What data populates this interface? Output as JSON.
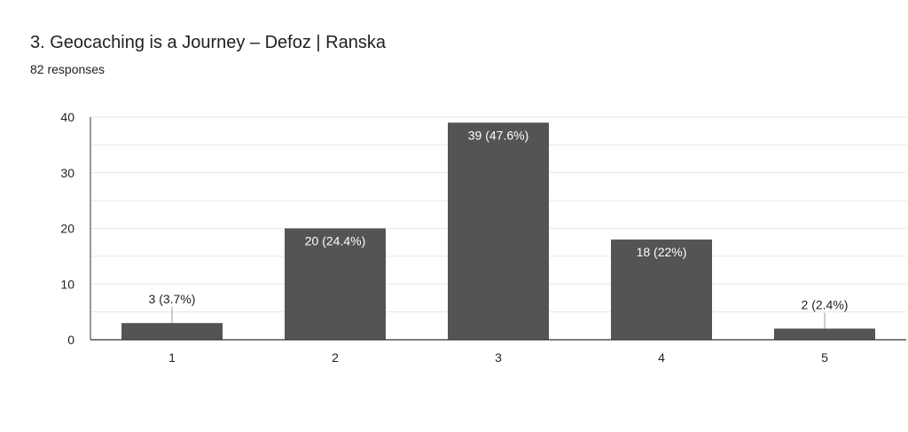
{
  "header": {
    "title": "3. Geocaching is a Journey – Defoz | Ranska",
    "subtitle": "82 responses"
  },
  "colors": {
    "bar": "#545454",
    "axis": "#333333",
    "grid": "#e6e6e6",
    "text": "#222222",
    "inside_label": "#ffffff"
  },
  "chart_data": {
    "type": "bar",
    "title": "3. Geocaching is a Journey – Defoz | Ranska",
    "xlabel": "",
    "ylabel": "",
    "categories": [
      "1",
      "2",
      "3",
      "4",
      "5"
    ],
    "values": [
      3,
      20,
      39,
      18,
      2
    ],
    "data_labels": [
      "3 (3.7%)",
      "20 (24.4%)",
      "39 (47.6%)",
      "18 (22%)",
      "2 (2.4%)"
    ],
    "ylim": [
      0,
      40
    ],
    "yticks": [
      0,
      10,
      20,
      30,
      40
    ],
    "grid": true,
    "legend": "none"
  }
}
